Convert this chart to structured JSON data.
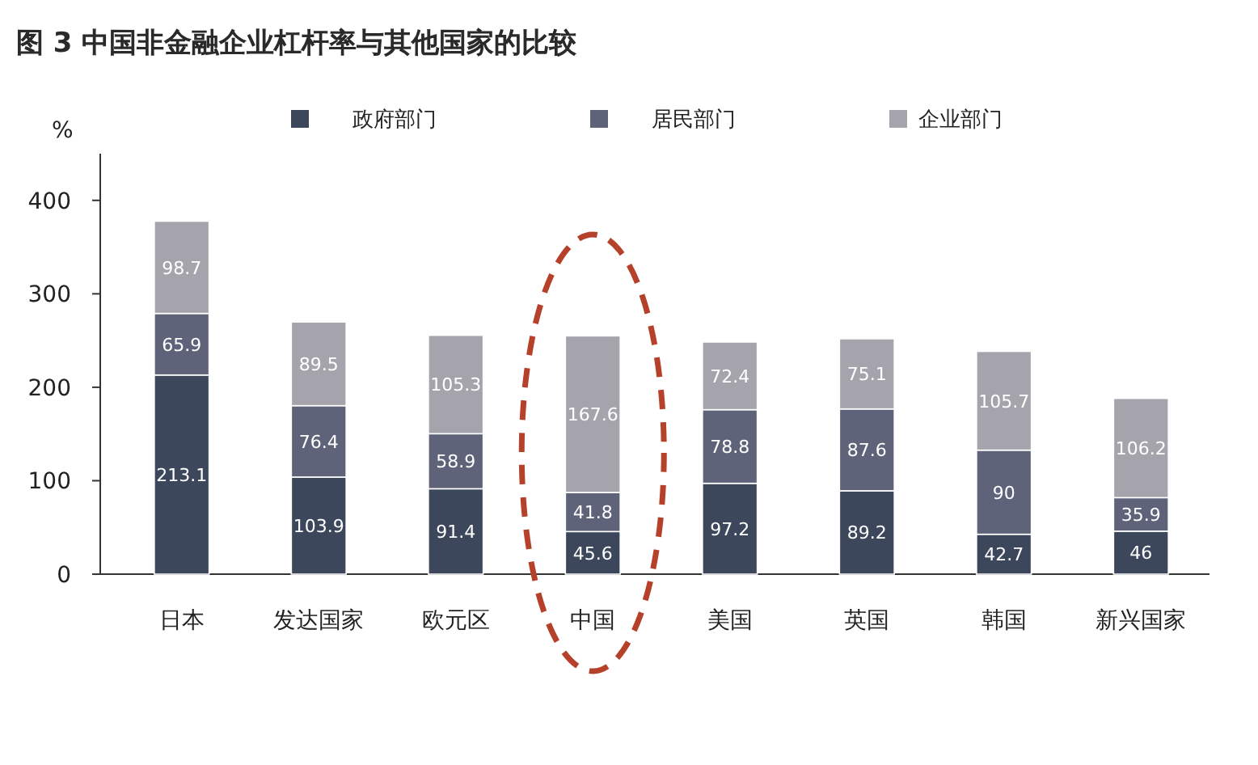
{
  "chart_data": {
    "type": "bar",
    "title": "图 3  中国非金融企业杠杆率与其他国家的比较",
    "ylabel": "%",
    "categories": [
      "日本",
      "发达国家",
      "欧元区",
      "中国",
      "美国",
      "英国",
      "韩国",
      "新兴国家"
    ],
    "stacked": true,
    "data_labels": true,
    "legend": "top",
    "grid": false,
    "ylim": [
      0,
      450
    ],
    "yticks": [
      0,
      100,
      200,
      300,
      400
    ],
    "series": [
      {
        "name": "政府部门",
        "color": "#3c475c",
        "values": [
          213.1,
          103.9,
          91.4,
          45.6,
          97.2,
          89.2,
          42.7,
          46
        ]
      },
      {
        "name": "居民部门",
        "color": "#5e6379",
        "values": [
          65.9,
          76.4,
          58.9,
          41.8,
          78.8,
          87.6,
          90,
          35.9
        ]
      },
      {
        "name": "企业部门",
        "color": "#a5a4ac",
        "values": [
          98.7,
          89.5,
          105.3,
          167.6,
          72.4,
          75.1,
          105.7,
          106.2
        ]
      }
    ]
  }
}
